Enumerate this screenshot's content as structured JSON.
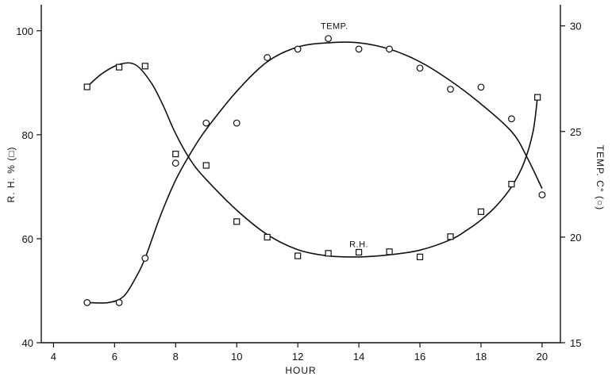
{
  "chart_data": {
    "type": "line",
    "xlabel": "HOUR",
    "ylabel_left": "R. H. % (□)",
    "ylabel_right": "TEMP. C° (○)",
    "xlim": [
      3.6,
      20.6
    ],
    "xticks": [
      4,
      6,
      8,
      10,
      12,
      14,
      16,
      18,
      20
    ],
    "ylim_left": [
      40,
      105
    ],
    "yticks_left": [
      40,
      60,
      80,
      100
    ],
    "ylim_right": [
      15,
      31
    ],
    "yticks_right": [
      15,
      20,
      25,
      30
    ],
    "series": [
      {
        "name": "R.H.",
        "axis": "left",
        "marker": "square",
        "label_at": {
          "x": 14,
          "y": 59
        },
        "x": [
          5.1,
          6.15,
          7.0,
          8.0,
          9.0,
          10.0,
          11.0,
          12.0,
          13.0,
          14.0,
          15.0,
          16.0,
          17.0,
          18.0,
          19.0,
          19.85
        ],
        "y": [
          89.2,
          93.0,
          93.2,
          76.3,
          74.1,
          63.3,
          60.3,
          56.7,
          57.2,
          57.4,
          57.5,
          56.5,
          60.4,
          65.2,
          70.5,
          87.2
        ],
        "curve": [
          [
            5.1,
            89.2
          ],
          [
            5.6,
            91.8
          ],
          [
            6.2,
            93.6
          ],
          [
            6.7,
            93.4
          ],
          [
            7.2,
            90.0
          ],
          [
            7.6,
            85.5
          ],
          [
            8.0,
            80.2
          ],
          [
            8.5,
            75.0
          ],
          [
            9.0,
            71.4
          ],
          [
            10.0,
            65.5
          ],
          [
            11.0,
            60.8
          ],
          [
            12.0,
            57.9
          ],
          [
            13.0,
            56.7
          ],
          [
            14.0,
            56.5
          ],
          [
            15.0,
            56.9
          ],
          [
            16.0,
            57.8
          ],
          [
            17.0,
            59.8
          ],
          [
            17.5,
            61.5
          ],
          [
            18.0,
            63.6
          ],
          [
            18.5,
            66.3
          ],
          [
            19.0,
            70.0
          ],
          [
            19.4,
            74.5
          ],
          [
            19.7,
            80.5
          ],
          [
            19.85,
            87.2
          ]
        ]
      },
      {
        "name": "TEMP.",
        "axis": "right",
        "marker": "circle",
        "label_at": {
          "x": 13.2,
          "y": 30.0
        },
        "x": [
          5.1,
          6.15,
          7.0,
          8.0,
          9.0,
          10.0,
          11.0,
          12.0,
          13.0,
          14.0,
          15.0,
          16.0,
          17.0,
          18.0,
          19.0,
          20.0
        ],
        "y": [
          16.9,
          16.9,
          19.0,
          23.5,
          25.4,
          25.4,
          28.5,
          28.9,
          29.4,
          28.9,
          28.9,
          28.0,
          27.0,
          27.1,
          25.6,
          22.0
        ],
        "curve": [
          [
            5.1,
            16.9
          ],
          [
            5.8,
            16.9
          ],
          [
            6.3,
            17.2
          ],
          [
            6.7,
            18.1
          ],
          [
            7.0,
            19.0
          ],
          [
            7.5,
            21.0
          ],
          [
            8.0,
            22.7
          ],
          [
            8.5,
            24.0
          ],
          [
            9.0,
            25.1
          ],
          [
            10.0,
            26.9
          ],
          [
            11.0,
            28.3
          ],
          [
            12.0,
            29.0
          ],
          [
            13.0,
            29.2
          ],
          [
            14.0,
            29.2
          ],
          [
            15.0,
            28.9
          ],
          [
            16.0,
            28.3
          ],
          [
            17.0,
            27.4
          ],
          [
            18.0,
            26.3
          ],
          [
            19.0,
            25.0
          ],
          [
            19.5,
            23.8
          ],
          [
            20.0,
            22.3
          ]
        ]
      }
    ]
  }
}
